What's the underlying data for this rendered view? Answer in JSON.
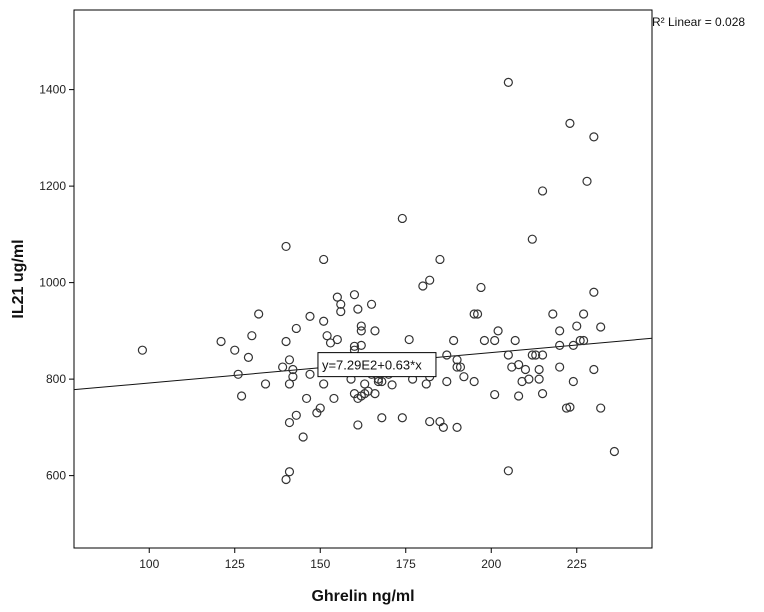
{
  "chart_data": {
    "type": "scatter",
    "xlabel": "Ghrelin ng/ml",
    "ylabel": "IL21 ug/ml",
    "xlim": [
      78,
      247
    ],
    "ylim": [
      450,
      1565
    ],
    "x_ticks": [
      100,
      125,
      150,
      175,
      200,
      225
    ],
    "x_tick_labels": [
      "100",
      "125",
      "150",
      "175",
      "200",
      "225"
    ],
    "y_ticks": [
      600,
      800,
      1000,
      1200,
      1400
    ],
    "y_tick_labels": [
      "600",
      "800",
      "1000",
      "1200",
      "1400"
    ],
    "grid": false,
    "marker": "open-circle",
    "r2_label": "R² Linear = 0.028",
    "fit_line": {
      "equation_label": "y=7.29E2+0.63*x",
      "intercept": 729,
      "slope": 0.63
    },
    "points": [
      {
        "x": 98,
        "y": 860
      },
      {
        "x": 121,
        "y": 878
      },
      {
        "x": 125,
        "y": 860
      },
      {
        "x": 126,
        "y": 810
      },
      {
        "x": 127,
        "y": 765
      },
      {
        "x": 129,
        "y": 845
      },
      {
        "x": 130,
        "y": 890
      },
      {
        "x": 132,
        "y": 935
      },
      {
        "x": 134,
        "y": 790
      },
      {
        "x": 139,
        "y": 825
      },
      {
        "x": 140,
        "y": 1075
      },
      {
        "x": 140,
        "y": 878
      },
      {
        "x": 140,
        "y": 592
      },
      {
        "x": 141,
        "y": 608
      },
      {
        "x": 141,
        "y": 790
      },
      {
        "x": 141,
        "y": 710
      },
      {
        "x": 141,
        "y": 840
      },
      {
        "x": 142,
        "y": 805
      },
      {
        "x": 142,
        "y": 820
      },
      {
        "x": 143,
        "y": 905
      },
      {
        "x": 143,
        "y": 725
      },
      {
        "x": 145,
        "y": 680
      },
      {
        "x": 146,
        "y": 760
      },
      {
        "x": 147,
        "y": 930
      },
      {
        "x": 147,
        "y": 810
      },
      {
        "x": 149,
        "y": 730
      },
      {
        "x": 150,
        "y": 740
      },
      {
        "x": 151,
        "y": 1048
      },
      {
        "x": 151,
        "y": 920
      },
      {
        "x": 151,
        "y": 790
      },
      {
        "x": 152,
        "y": 890
      },
      {
        "x": 153,
        "y": 875
      },
      {
        "x": 154,
        "y": 760
      },
      {
        "x": 155,
        "y": 970
      },
      {
        "x": 155,
        "y": 882
      },
      {
        "x": 156,
        "y": 955
      },
      {
        "x": 156,
        "y": 940
      },
      {
        "x": 157,
        "y": 840
      },
      {
        "x": 159,
        "y": 800
      },
      {
        "x": 160,
        "y": 975
      },
      {
        "x": 160,
        "y": 868
      },
      {
        "x": 160,
        "y": 860
      },
      {
        "x": 160,
        "y": 770
      },
      {
        "x": 161,
        "y": 945
      },
      {
        "x": 161,
        "y": 705
      },
      {
        "x": 161,
        "y": 760
      },
      {
        "x": 162,
        "y": 910
      },
      {
        "x": 162,
        "y": 900
      },
      {
        "x": 162,
        "y": 870
      },
      {
        "x": 162,
        "y": 765
      },
      {
        "x": 163,
        "y": 790
      },
      {
        "x": 163,
        "y": 770
      },
      {
        "x": 164,
        "y": 775
      },
      {
        "x": 165,
        "y": 955
      },
      {
        "x": 165,
        "y": 810
      },
      {
        "x": 166,
        "y": 900
      },
      {
        "x": 166,
        "y": 770
      },
      {
        "x": 167,
        "y": 800
      },
      {
        "x": 167,
        "y": 795
      },
      {
        "x": 168,
        "y": 720
      },
      {
        "x": 168,
        "y": 795
      },
      {
        "x": 170,
        "y": 810
      },
      {
        "x": 171,
        "y": 788
      },
      {
        "x": 174,
        "y": 1133
      },
      {
        "x": 174,
        "y": 720
      },
      {
        "x": 176,
        "y": 882
      },
      {
        "x": 177,
        "y": 800
      },
      {
        "x": 178,
        "y": 820
      },
      {
        "x": 180,
        "y": 993
      },
      {
        "x": 181,
        "y": 790
      },
      {
        "x": 182,
        "y": 1005
      },
      {
        "x": 182,
        "y": 805
      },
      {
        "x": 182,
        "y": 712
      },
      {
        "x": 185,
        "y": 1048
      },
      {
        "x": 185,
        "y": 712
      },
      {
        "x": 186,
        "y": 700
      },
      {
        "x": 187,
        "y": 850
      },
      {
        "x": 187,
        "y": 795
      },
      {
        "x": 189,
        "y": 880
      },
      {
        "x": 190,
        "y": 840
      },
      {
        "x": 190,
        "y": 825
      },
      {
        "x": 190,
        "y": 700
      },
      {
        "x": 191,
        "y": 825
      },
      {
        "x": 192,
        "y": 805
      },
      {
        "x": 195,
        "y": 935
      },
      {
        "x": 195,
        "y": 795
      },
      {
        "x": 196,
        "y": 935
      },
      {
        "x": 197,
        "y": 990
      },
      {
        "x": 198,
        "y": 880
      },
      {
        "x": 201,
        "y": 880
      },
      {
        "x": 201,
        "y": 768
      },
      {
        "x": 202,
        "y": 900
      },
      {
        "x": 205,
        "y": 1415
      },
      {
        "x": 205,
        "y": 850
      },
      {
        "x": 205,
        "y": 610
      },
      {
        "x": 206,
        "y": 825
      },
      {
        "x": 207,
        "y": 880
      },
      {
        "x": 208,
        "y": 765
      },
      {
        "x": 208,
        "y": 830
      },
      {
        "x": 209,
        "y": 795
      },
      {
        "x": 210,
        "y": 820
      },
      {
        "x": 211,
        "y": 800
      },
      {
        "x": 212,
        "y": 1090
      },
      {
        "x": 212,
        "y": 850
      },
      {
        "x": 213,
        "y": 850
      },
      {
        "x": 214,
        "y": 820
      },
      {
        "x": 214,
        "y": 800
      },
      {
        "x": 215,
        "y": 1190
      },
      {
        "x": 215,
        "y": 850
      },
      {
        "x": 215,
        "y": 770
      },
      {
        "x": 218,
        "y": 935
      },
      {
        "x": 220,
        "y": 900
      },
      {
        "x": 220,
        "y": 870
      },
      {
        "x": 220,
        "y": 825
      },
      {
        "x": 222,
        "y": 740
      },
      {
        "x": 223,
        "y": 1330
      },
      {
        "x": 223,
        "y": 742
      },
      {
        "x": 224,
        "y": 870
      },
      {
        "x": 224,
        "y": 795
      },
      {
        "x": 225,
        "y": 910
      },
      {
        "x": 226,
        "y": 880
      },
      {
        "x": 227,
        "y": 935
      },
      {
        "x": 227,
        "y": 880
      },
      {
        "x": 228,
        "y": 1210
      },
      {
        "x": 230,
        "y": 1302
      },
      {
        "x": 230,
        "y": 980
      },
      {
        "x": 230,
        "y": 820
      },
      {
        "x": 232,
        "y": 908
      },
      {
        "x": 232,
        "y": 740
      },
      {
        "x": 236,
        "y": 650
      }
    ]
  }
}
